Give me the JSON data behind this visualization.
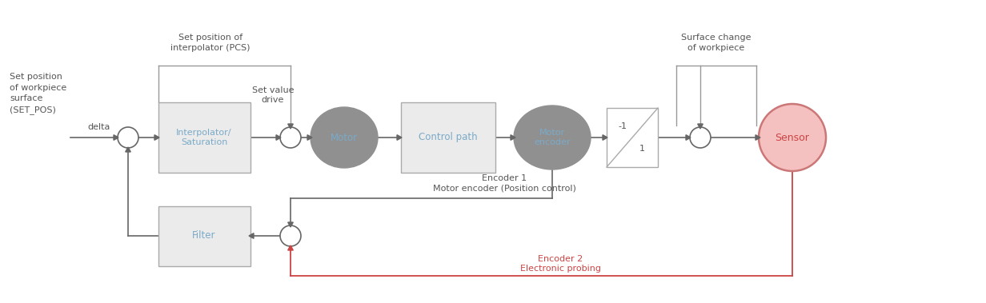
{
  "bg_color": "#ffffff",
  "gray_box_fill": "#ebebeb",
  "gray_box_edge": "#aaaaaa",
  "dark_ellipse_fill": "#909090",
  "sensor_fill": "#f5c0c0",
  "sensor_edge": "#cc7777",
  "text_blue": "#7aaac8",
  "text_dark": "#555555",
  "text_red": "#cc4444",
  "arrow_color": "#666666",
  "red_arrow_color": "#cc4444",
  "line_color": "#999999",
  "set_pos_text": "Set position\nof workpiece\nsurface\n(SET_POS)",
  "interp_text": "Interpolator/\nSaturation",
  "motor_text": "Motor",
  "control_path_text": "Control path",
  "motor_enc_text": "Motor\nencoder",
  "filter_text": "Filter",
  "sensor_text": "Sensor",
  "set_pos_interp_label": "Set position of\ninterpolator (PCS)",
  "set_value_drive_label": "Set value\ndrive",
  "delta_label": "delta",
  "surface_change_label": "Surface change\nof workpiece",
  "encoder1_label": "Encoder 1\nMotor encoder (Position control)",
  "encoder2_label": "Encoder 2\nElectronic probing",
  "fig_width": 12.32,
  "fig_height": 3.79,
  "dpi": 100
}
